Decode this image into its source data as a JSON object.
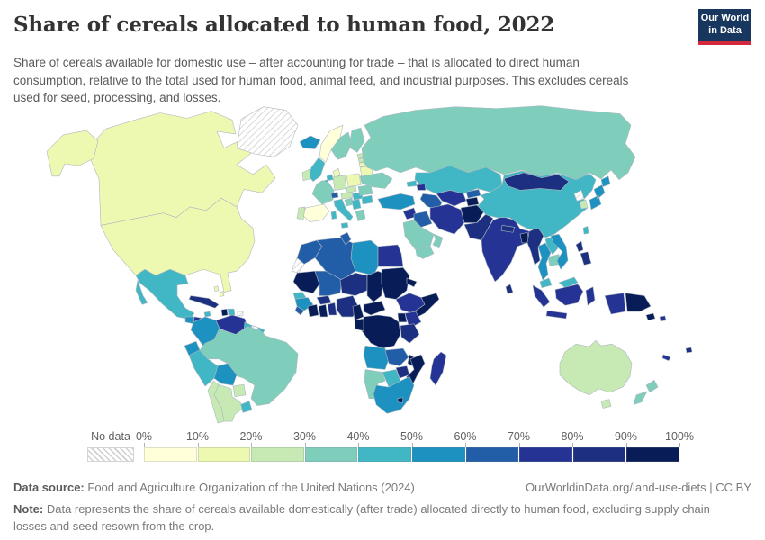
{
  "header": {
    "title": "Share of cereals allocated to human food, 2022",
    "subtitle": "Share of cereals available for domestic use – after accounting for trade – that is allocated to direct human consumption, relative to the total used for human food, animal feed, and industrial purposes. This excludes cereals used for seed, processing, and losses.",
    "logo": {
      "line1": "Our World",
      "line2": "in Data",
      "bg_color": "#18375f",
      "accent_color": "#d4293d"
    }
  },
  "legend": {
    "no_data_label": "No data",
    "tick_labels": [
      "0%",
      "10%",
      "20%",
      "30%",
      "40%",
      "50%",
      "60%",
      "70%",
      "80%",
      "90%",
      "100%"
    ]
  },
  "footer": {
    "source_label": "Data source:",
    "source_text": "Food and Agriculture Organization of the United Nations (2024)",
    "link_text": "OurWorldinData.org/land-use-diets | CC BY",
    "note_label": "Note:",
    "note_text": "Data represents the share of cereals available domestically (after trade) allocated directly to human food, excluding supply chain losses and seed resown from the crop."
  },
  "chart_data": {
    "type": "choropleth",
    "title": "Share of cereals allocated to human food, 2022",
    "unit": "%",
    "legend_position": "bottom",
    "bins": [
      "0-10%",
      "10-20%",
      "20-30%",
      "30-40%",
      "40-50%",
      "50-60%",
      "60-70%",
      "70-80%",
      "80-90%",
      "90-100%"
    ],
    "palette": [
      "#ffffd9",
      "#edf8b1",
      "#c7e9b4",
      "#7fcdbb",
      "#41b6c4",
      "#1d91c0",
      "#225ea8",
      "#253494",
      "#1c2f80",
      "#081d58"
    ],
    "no_data": [
      "Greenland",
      "Western Sahara",
      "North Korea",
      "Suriname",
      "Puerto Rico"
    ],
    "regions": {
      "United States": "10-20%",
      "Canada": "10-20%",
      "Iceland": "50-60%",
      "Mexico": "40-50%",
      "Guatemala": "50-60%",
      "Honduras": "70-80%",
      "Nicaragua": "50-60%",
      "Costa Rica": "40-50%",
      "Panama": "50-60%",
      "Cuba": "80-90%",
      "Jamaica": "40-50%",
      "Haiti": "90-100%",
      "Dominican Republic": "40-50%",
      "Bahamas": "10-20%",
      "Colombia": "50-60%",
      "Venezuela": "70-80%",
      "Guyana": "40-50%",
      "French Guiana": "40-50%",
      "Ecuador": "50-60%",
      "Peru": "40-50%",
      "Brazil": "30-40%",
      "Bolivia": "50-60%",
      "Paraguay": "20-30%",
      "Uruguay": "40-50%",
      "Argentina": "20-30%",
      "Chile": "20-30%",
      "Norway": "0-10%",
      "Sweden": "30-40%",
      "Finland": "30-40%",
      "Denmark": "10-20%",
      "United Kingdom": "40-50%",
      "Ireland": "20-30%",
      "Netherlands": "40-50%",
      "Belgium": "40-50%",
      "Germany": "20-30%",
      "Poland": "10-20%",
      "France": "30-40%",
      "Switzerland": "60-70%",
      "Czechia": "20-30%",
      "Austria": "20-30%",
      "Hungary": "40-50%",
      "Spain": "0-10%",
      "Portugal": "20-30%",
      "Italy": "40-50%",
      "Croatia": "30-40%",
      "Serbia": "40-50%",
      "Greece": "30-40%",
      "Romania": "30-40%",
      "Bulgaria": "40-50%",
      "Ukraine": "30-40%",
      "Belarus": "10-20%",
      "Estonia": "20-30%",
      "Latvia": "20-30%",
      "Lithuania": "10-20%",
      "Russia": "30-40%",
      "Kazakhstan": "40-50%",
      "Uzbekistan": "70-80%",
      "Turkmenistan": "60-70%",
      "Kyrgyzstan": "60-70%",
      "Tajikistan": "90-100%",
      "Georgia": "40-50%",
      "Azerbaijan": "70-80%",
      "Turkey": "50-60%",
      "Syria": "70-80%",
      "Iraq": "60-70%",
      "Iran": "70-80%",
      "Saudi Arabia": "30-40%",
      "Yemen": "30-40%",
      "Oman": "30-40%",
      "Afghanistan": "90-100%",
      "Pakistan": "80-90%",
      "India": "70-80%",
      "Nepal": "80-90%",
      "Bangladesh": "90-100%",
      "Sri Lanka": "80-90%",
      "Myanmar": "80-90%",
      "Thailand": "50-60%",
      "Laos": "40-50%",
      "Cambodia": "30-40%",
      "Vietnam": "50-60%",
      "China": "40-50%",
      "Mongolia": "80-90%",
      "South Korea": "20-30%",
      "Japan": "50-60%",
      "Taiwan": "40-50%",
      "Philippines": "80-90%",
      "Malaysia": "40-50%",
      "Indonesia": "70-80%",
      "Papua New Guinea": "90-100%",
      "Solomon Islands": "70-80%",
      "Fiji": "80-90%",
      "New Caledonia": "70-80%",
      "Morocco": "60-70%",
      "Algeria": "60-70%",
      "Tunisia": "60-70%",
      "Libya": "50-60%",
      "Egypt": "70-80%",
      "Mauritania": "90-100%",
      "Mali": "60-70%",
      "Niger": "80-90%",
      "Chad": "90-100%",
      "Sudan": "90-100%",
      "Eritrea": "90-100%",
      "Senegal": "40-50%",
      "Guinea": "50-60%",
      "Sierra Leone": "60-70%",
      "Ivory Coast": "90-100%",
      "Ghana": "90-100%",
      "Burkina Faso": "80-90%",
      "Benin": "80-90%",
      "Nigeria": "80-90%",
      "Cameroon": "90-100%",
      "Central African Republic": "90-100%",
      "Ethiopia": "70-80%",
      "Somalia": "90-100%",
      "Kenya": "70-80%",
      "Uganda": "90-100%",
      "Democratic Republic of Congo": "90-100%",
      "Gabon": "90-100%",
      "Tanzania": "80-90%",
      "Angola": "50-60%",
      "Zambia": "60-70%",
      "Malawi": "90-100%",
      "Mozambique": "90-100%",
      "Zimbabwe": "80-90%",
      "Botswana": "40-50%",
      "Namibia": "30-40%",
      "South Africa": "50-60%",
      "Lesotho": "90-100%",
      "Madagascar": "70-80%",
      "Australia": "20-30%",
      "New Zealand": "30-40%"
    }
  }
}
